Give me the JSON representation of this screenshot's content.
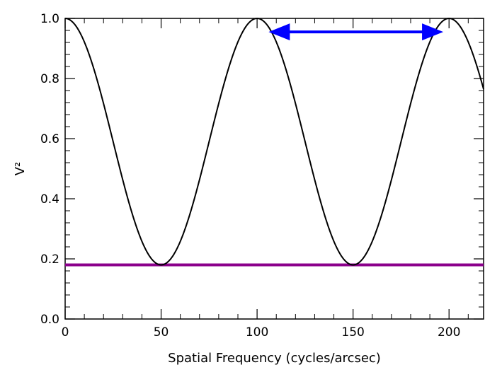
{
  "chart_data": {
    "type": "line",
    "title": "",
    "xlabel": "Spatial Frequency (cycles/arcsec)",
    "ylabel": "V²",
    "xlim": [
      0,
      218
    ],
    "ylim": [
      0.0,
      1.0
    ],
    "x_ticks": [
      0,
      50,
      100,
      150,
      200
    ],
    "y_ticks": [
      0.0,
      0.2,
      0.4,
      0.6,
      0.8,
      1.0
    ],
    "x_tick_labels": [
      "0",
      "50",
      "100",
      "150",
      "200"
    ],
    "y_tick_labels": [
      "0.0",
      "0.2",
      "0.4",
      "0.6",
      "0.8",
      "1.0"
    ],
    "grid": false,
    "series": [
      {
        "kind": "curve",
        "color": "#000000",
        "function": "V2 = 0.59 + 0.41*cos(2*pi*x/100)",
        "x": [
          0,
          10,
          20,
          30,
          40,
          50,
          60,
          70,
          80,
          90,
          100,
          110,
          120,
          130,
          140,
          150,
          160,
          170,
          180,
          190,
          200,
          210,
          218
        ],
        "y": [
          1.0,
          0.92,
          0.72,
          0.46,
          0.26,
          0.18,
          0.26,
          0.46,
          0.72,
          0.92,
          1.0,
          0.92,
          0.72,
          0.46,
          0.26,
          0.18,
          0.26,
          0.46,
          0.72,
          0.92,
          1.0,
          0.92,
          0.8
        ]
      },
      {
        "kind": "horizontal-line",
        "color": "#8B008B",
        "y": 0.18
      }
    ],
    "annotations": [
      {
        "kind": "double-arrow",
        "color": "#0000FF",
        "x_start": 106,
        "x_end": 197,
        "y": 0.955
      }
    ]
  }
}
